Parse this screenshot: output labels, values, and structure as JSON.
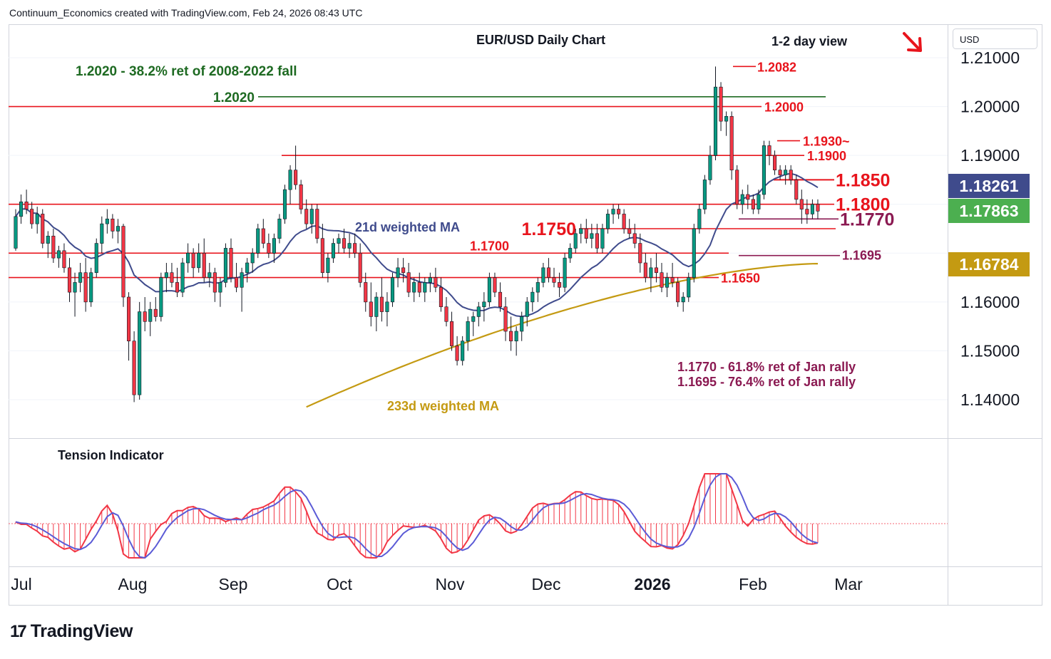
{
  "header": {
    "attribution": "Continuum_Economics created with TradingView.com, Feb 24, 2026 08:43 UTC",
    "brand": "TradingView"
  },
  "currency_label": "USD",
  "chart_data": {
    "type": "candlestick",
    "title": "EUR/USD Daily Chart",
    "view": "1-2 day view",
    "view_direction": "down",
    "price_axis": {
      "ticks": [
        "1.21000",
        "1.20000",
        "1.19000",
        "1.16000",
        "1.15000",
        "1.14000"
      ],
      "range": [
        1.137,
        1.215
      ]
    },
    "time_axis": {
      "labels": [
        "Jul",
        "Aug",
        "Sep",
        "Oct",
        "Nov",
        "Dec",
        "2026",
        "Feb",
        "Mar"
      ],
      "bold": "2026"
    },
    "price_badges": [
      {
        "value": "1.18261",
        "color": "#3f4b8c",
        "meaning": "21d weighted MA"
      },
      {
        "value": "1.17863",
        "color": "#4caf50",
        "meaning": "last price"
      },
      {
        "value": "1.16784",
        "color": "#c49a12",
        "meaning": "233d weighted MA"
      }
    ],
    "levels": [
      {
        "price": 1.2082,
        "label": "1.2082",
        "color": "#e8141c"
      },
      {
        "price": 1.202,
        "label": "1.2020",
        "color": "#1e6a22"
      },
      {
        "price": 1.2,
        "label": "1.2000",
        "color": "#e8141c"
      },
      {
        "price": 1.193,
        "label": "1.1930~",
        "color": "#e8141c"
      },
      {
        "price": 1.19,
        "label": "1.1900",
        "color": "#e8141c"
      },
      {
        "price": 1.185,
        "label": "1.1850",
        "color": "#e8141c"
      },
      {
        "price": 1.18,
        "label": "1.1800",
        "color": "#e8141c"
      },
      {
        "price": 1.177,
        "label": "1.1770",
        "color": "#8b1a52"
      },
      {
        "price": 1.175,
        "label": "1.1750",
        "color": "#e8141c"
      },
      {
        "price": 1.17,
        "label": "1.1700",
        "color": "#e8141c"
      },
      {
        "price": 1.1695,
        "label": "1.1695",
        "color": "#8b1a52"
      },
      {
        "price": 1.165,
        "label": "1.1650",
        "color": "#e8141c"
      }
    ],
    "annotations": {
      "fib_2020": "1.2020 - 38.2% ret of 2008-2022 fall",
      "fib_1770": "1.1770 - 61.8% ret of Jan rally",
      "fib_1695": "1.1695 - 76.4% ret of Jan rally",
      "ma21": "21d weighted MA",
      "ma233": "233d weighted MA"
    },
    "colors": {
      "up": "#089981",
      "down": "#f23645",
      "ma21": "#3f4b8c",
      "ma233": "#c49a12",
      "level": "#e8141c",
      "fib": "#8b1a52",
      "green_level": "#1e6a22"
    },
    "candles_ohlc": [
      [
        1.171,
        1.179,
        1.1705,
        1.1775
      ],
      [
        1.1775,
        1.182,
        1.176,
        1.1805
      ],
      [
        1.1805,
        1.183,
        1.178,
        1.179
      ],
      [
        1.179,
        1.1805,
        1.175,
        1.176
      ],
      [
        1.176,
        1.1795,
        1.174,
        1.178
      ],
      [
        1.178,
        1.179,
        1.171,
        1.172
      ],
      [
        1.172,
        1.1745,
        1.169,
        1.1735
      ],
      [
        1.1735,
        1.175,
        1.168,
        1.169
      ],
      [
        1.169,
        1.1715,
        1.167,
        1.1705
      ],
      [
        1.1705,
        1.172,
        1.166,
        1.167
      ],
      [
        1.167,
        1.169,
        1.16,
        1.162
      ],
      [
        1.162,
        1.166,
        1.157,
        1.164
      ],
      [
        1.164,
        1.168,
        1.162,
        1.166
      ],
      [
        1.166,
        1.169,
        1.158,
        1.16
      ],
      [
        1.16,
        1.167,
        1.159,
        1.166
      ],
      [
        1.166,
        1.173,
        1.165,
        1.172
      ],
      [
        1.172,
        1.1775,
        1.17,
        1.176
      ],
      [
        1.176,
        1.179,
        1.174,
        1.177
      ],
      [
        1.177,
        1.178,
        1.173,
        1.1745
      ],
      [
        1.1745,
        1.177,
        1.172,
        1.1755
      ],
      [
        1.1755,
        1.176,
        1.159,
        1.161
      ],
      [
        1.161,
        1.162,
        1.148,
        1.152
      ],
      [
        1.152,
        1.154,
        1.1395,
        1.141
      ],
      [
        1.141,
        1.16,
        1.14,
        1.158
      ],
      [
        1.158,
        1.161,
        1.154,
        1.156
      ],
      [
        1.156,
        1.16,
        1.153,
        1.1585
      ],
      [
        1.1585,
        1.161,
        1.156,
        1.157
      ],
      [
        1.157,
        1.166,
        1.156,
        1.165
      ],
      [
        1.165,
        1.168,
        1.162,
        1.166
      ],
      [
        1.166,
        1.168,
        1.163,
        1.164
      ],
      [
        1.164,
        1.167,
        1.161,
        1.162
      ],
      [
        1.162,
        1.169,
        1.161,
        1.168
      ],
      [
        1.168,
        1.172,
        1.166,
        1.17
      ],
      [
        1.17,
        1.171,
        1.165,
        1.167
      ],
      [
        1.167,
        1.172,
        1.166,
        1.17
      ],
      [
        1.17,
        1.173,
        1.164,
        1.165
      ],
      [
        1.165,
        1.168,
        1.163,
        1.166
      ],
      [
        1.166,
        1.167,
        1.16,
        1.162
      ],
      [
        1.162,
        1.165,
        1.159,
        1.164
      ],
      [
        1.164,
        1.172,
        1.163,
        1.171
      ],
      [
        1.171,
        1.173,
        1.164,
        1.165
      ],
      [
        1.165,
        1.168,
        1.162,
        1.163
      ],
      [
        1.163,
        1.167,
        1.158,
        1.166
      ],
      [
        1.166,
        1.169,
        1.164,
        1.168
      ],
      [
        1.168,
        1.171,
        1.166,
        1.17
      ],
      [
        1.17,
        1.176,
        1.169,
        1.175
      ],
      [
        1.175,
        1.177,
        1.171,
        1.172
      ],
      [
        1.172,
        1.174,
        1.169,
        1.17
      ],
      [
        1.17,
        1.174,
        1.168,
        1.173
      ],
      [
        1.173,
        1.178,
        1.172,
        1.177
      ],
      [
        1.177,
        1.184,
        1.176,
        1.183
      ],
      [
        1.183,
        1.188,
        1.18,
        1.187
      ],
      [
        1.187,
        1.192,
        1.183,
        1.184
      ],
      [
        1.184,
        1.185,
        1.178,
        1.179
      ],
      [
        1.179,
        1.181,
        1.175,
        1.176
      ],
      [
        1.176,
        1.18,
        1.174,
        1.179
      ],
      [
        1.179,
        1.18,
        1.172,
        1.173
      ],
      [
        1.173,
        1.176,
        1.165,
        1.166
      ],
      [
        1.166,
        1.17,
        1.164,
        1.169
      ],
      [
        1.169,
        1.173,
        1.168,
        1.172
      ],
      [
        1.172,
        1.174,
        1.17,
        1.173
      ],
      [
        1.173,
        1.175,
        1.17,
        1.171
      ],
      [
        1.171,
        1.174,
        1.169,
        1.172
      ],
      [
        1.172,
        1.174,
        1.169,
        1.17
      ],
      [
        1.17,
        1.172,
        1.163,
        1.164
      ],
      [
        1.164,
        1.166,
        1.158,
        1.16
      ],
      [
        1.16,
        1.164,
        1.155,
        1.157
      ],
      [
        1.157,
        1.162,
        1.154,
        1.161
      ],
      [
        1.161,
        1.165,
        1.156,
        1.158
      ],
      [
        1.158,
        1.162,
        1.155,
        1.16
      ],
      [
        1.16,
        1.166,
        1.159,
        1.165
      ],
      [
        1.165,
        1.169,
        1.163,
        1.167
      ],
      [
        1.167,
        1.169,
        1.164,
        1.166
      ],
      [
        1.166,
        1.168,
        1.161,
        1.162
      ],
      [
        1.162,
        1.165,
        1.16,
        1.164
      ],
      [
        1.164,
        1.166,
        1.161,
        1.162
      ],
      [
        1.162,
        1.165,
        1.16,
        1.164
      ],
      [
        1.164,
        1.166,
        1.162,
        1.165
      ],
      [
        1.165,
        1.167,
        1.162,
        1.163
      ],
      [
        1.163,
        1.165,
        1.158,
        1.159
      ],
      [
        1.159,
        1.161,
        1.155,
        1.156
      ],
      [
        1.156,
        1.158,
        1.15,
        1.151
      ],
      [
        1.151,
        1.153,
        1.147,
        1.148
      ],
      [
        1.148,
        1.153,
        1.147,
        1.152
      ],
      [
        1.152,
        1.157,
        1.15,
        1.156
      ],
      [
        1.156,
        1.158,
        1.153,
        1.157
      ],
      [
        1.157,
        1.16,
        1.155,
        1.159
      ],
      [
        1.159,
        1.162,
        1.156,
        1.16
      ],
      [
        1.16,
        1.166,
        1.159,
        1.165
      ],
      [
        1.165,
        1.166,
        1.161,
        1.162
      ],
      [
        1.162,
        1.164,
        1.158,
        1.159
      ],
      [
        1.159,
        1.161,
        1.152,
        1.154
      ],
      [
        1.154,
        1.157,
        1.15,
        1.152
      ],
      [
        1.152,
        1.155,
        1.149,
        1.154
      ],
      [
        1.154,
        1.158,
        1.152,
        1.157
      ],
      [
        1.157,
        1.161,
        1.155,
        1.16
      ],
      [
        1.16,
        1.163,
        1.158,
        1.162
      ],
      [
        1.162,
        1.165,
        1.16,
        1.164
      ],
      [
        1.164,
        1.168,
        1.163,
        1.167
      ],
      [
        1.167,
        1.169,
        1.164,
        1.165
      ],
      [
        1.165,
        1.167,
        1.163,
        1.164
      ],
      [
        1.164,
        1.166,
        1.161,
        1.163
      ],
      [
        1.163,
        1.17,
        1.162,
        1.169
      ],
      [
        1.169,
        1.172,
        1.168,
        1.171
      ],
      [
        1.171,
        1.175,
        1.17,
        1.174
      ],
      [
        1.174,
        1.176,
        1.172,
        1.175
      ],
      [
        1.175,
        1.177,
        1.172,
        1.173
      ],
      [
        1.173,
        1.176,
        1.171,
        1.174
      ],
      [
        1.174,
        1.176,
        1.17,
        1.171
      ],
      [
        1.171,
        1.176,
        1.17,
        1.175
      ],
      [
        1.175,
        1.179,
        1.174,
        1.178
      ],
      [
        1.178,
        1.18,
        1.176,
        1.179
      ],
      [
        1.179,
        1.18,
        1.177,
        1.178
      ],
      [
        1.178,
        1.179,
        1.174,
        1.175
      ],
      [
        1.175,
        1.177,
        1.173,
        1.174
      ],
      [
        1.174,
        1.176,
        1.171,
        1.172
      ],
      [
        1.172,
        1.174,
        1.166,
        1.168
      ],
      [
        1.168,
        1.17,
        1.164,
        1.165
      ],
      [
        1.165,
        1.169,
        1.162,
        1.167
      ],
      [
        1.167,
        1.17,
        1.164,
        1.166
      ],
      [
        1.166,
        1.168,
        1.162,
        1.163
      ],
      [
        1.163,
        1.166,
        1.161,
        1.165
      ],
      [
        1.165,
        1.168,
        1.163,
        1.164
      ],
      [
        1.164,
        1.165,
        1.159,
        1.16
      ],
      [
        1.16,
        1.162,
        1.158,
        1.161
      ],
      [
        1.161,
        1.166,
        1.16,
        1.165
      ],
      [
        1.165,
        1.176,
        1.164,
        1.175
      ],
      [
        1.175,
        1.18,
        1.174,
        1.179
      ],
      [
        1.179,
        1.186,
        1.178,
        1.185
      ],
      [
        1.185,
        1.192,
        1.184,
        1.19
      ],
      [
        1.19,
        1.2082,
        1.189,
        1.204
      ],
      [
        1.204,
        1.205,
        1.195,
        1.197
      ],
      [
        1.197,
        1.199,
        1.194,
        1.198
      ],
      [
        1.198,
        1.199,
        1.185,
        1.187
      ],
      [
        1.187,
        1.188,
        1.179,
        1.18
      ],
      [
        1.18,
        1.183,
        1.178,
        1.182
      ],
      [
        1.182,
        1.184,
        1.179,
        1.181
      ],
      [
        1.181,
        1.182,
        1.178,
        1.179
      ],
      [
        1.179,
        1.183,
        1.178,
        1.182
      ],
      [
        1.182,
        1.193,
        1.181,
        1.192
      ],
      [
        1.192,
        1.193,
        1.188,
        1.19
      ],
      [
        1.19,
        1.191,
        1.186,
        1.187
      ],
      [
        1.187,
        1.188,
        1.185,
        1.186
      ],
      [
        1.186,
        1.188,
        1.184,
        1.187
      ],
      [
        1.187,
        1.188,
        1.184,
        1.185
      ],
      [
        1.185,
        1.186,
        1.18,
        1.181
      ],
      [
        1.181,
        1.183,
        1.176,
        1.179
      ],
      [
        1.179,
        1.181,
        1.176,
        1.178
      ],
      [
        1.178,
        1.181,
        1.177,
        1.18
      ],
      [
        1.18,
        1.181,
        1.177,
        1.1786
      ]
    ],
    "tension_panel_label": "Tension Indicator"
  }
}
